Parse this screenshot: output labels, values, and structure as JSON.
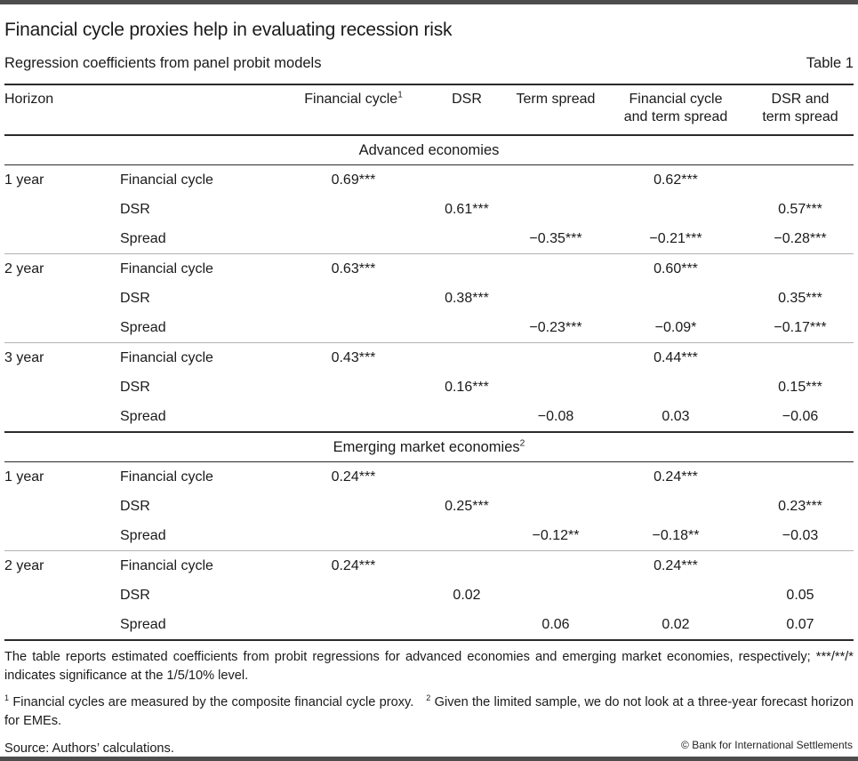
{
  "page": {
    "title": "Financial cycle proxies help in evaluating recession risk",
    "subtitle": "Regression coefficients from panel probit models",
    "table_label": "Table 1"
  },
  "table": {
    "columns": [
      {
        "label": "Horizon"
      },
      {
        "label": ""
      },
      {
        "label": "Financial cycle",
        "sup": "1"
      },
      {
        "label": "DSR"
      },
      {
        "label": "Term spread"
      },
      {
        "label": "Financial cycle and term spread"
      },
      {
        "label": "DSR and term spread"
      }
    ],
    "sections": [
      {
        "title": "Advanced economies",
        "sup": "",
        "groups": [
          {
            "horizon": "1 year",
            "rows": [
              {
                "label": "Financial cycle",
                "values": [
                  "0.69***",
                  "",
                  "",
                  "0.62***",
                  ""
                ]
              },
              {
                "label": "DSR",
                "values": [
                  "",
                  "0.61***",
                  "",
                  "",
                  "0.57***"
                ]
              },
              {
                "label": "Spread",
                "values": [
                  "",
                  "",
                  "−0.35***",
                  "−0.21***",
                  "−0.28***"
                ]
              }
            ]
          },
          {
            "horizon": "2 year",
            "rows": [
              {
                "label": "Financial cycle",
                "values": [
                  "0.63***",
                  "",
                  "",
                  "0.60***",
                  ""
                ]
              },
              {
                "label": "DSR",
                "values": [
                  "",
                  "0.38***",
                  "",
                  "",
                  "0.35***"
                ]
              },
              {
                "label": "Spread",
                "values": [
                  "",
                  "",
                  "−0.23***",
                  "−0.09*",
                  "−0.17***"
                ]
              }
            ]
          },
          {
            "horizon": "3 year",
            "rows": [
              {
                "label": "Financial cycle",
                "values": [
                  "0.43***",
                  "",
                  "",
                  "0.44***",
                  ""
                ]
              },
              {
                "label": "DSR",
                "values": [
                  "",
                  "0.16***",
                  "",
                  "",
                  "0.15***"
                ]
              },
              {
                "label": "Spread",
                "values": [
                  "",
                  "",
                  "−0.08",
                  "0.03",
                  "−0.06"
                ]
              }
            ]
          }
        ]
      },
      {
        "title": "Emerging market economies",
        "sup": "2",
        "groups": [
          {
            "horizon": "1 year",
            "rows": [
              {
                "label": "Financial cycle",
                "values": [
                  "0.24***",
                  "",
                  "",
                  "0.24***",
                  ""
                ]
              },
              {
                "label": "DSR",
                "values": [
                  "",
                  "0.25***",
                  "",
                  "",
                  "0.23***"
                ]
              },
              {
                "label": "Spread",
                "values": [
                  "",
                  "",
                  "−0.12**",
                  "−0.18**",
                  "−0.03"
                ]
              }
            ]
          },
          {
            "horizon": "2 year",
            "rows": [
              {
                "label": "Financial cycle",
                "values": [
                  "0.24***",
                  "",
                  "",
                  "0.24***",
                  ""
                ]
              },
              {
                "label": "DSR",
                "values": [
                  "",
                  "0.02",
                  "",
                  "",
                  "0.05"
                ]
              },
              {
                "label": "Spread",
                "values": [
                  "",
                  "",
                  "0.06",
                  "0.02",
                  "0.07"
                ]
              }
            ]
          }
        ]
      }
    ]
  },
  "notes": {
    "general": "The table reports estimated coefficients from probit regressions for advanced economies and emerging market economies, respectively; ***/**/* indicates significance at the 1/5/10% level.",
    "fn1_marker": "1",
    "fn1": "Financial cycles are measured by the composite financial cycle proxy.",
    "fn2_marker": "2",
    "fn2": "Given the limited sample, we do not look at a three-year forecast horizon for EMEs.",
    "source": "Source: Authors’ calculations.",
    "copyright": "© Bank for International Settlements"
  }
}
